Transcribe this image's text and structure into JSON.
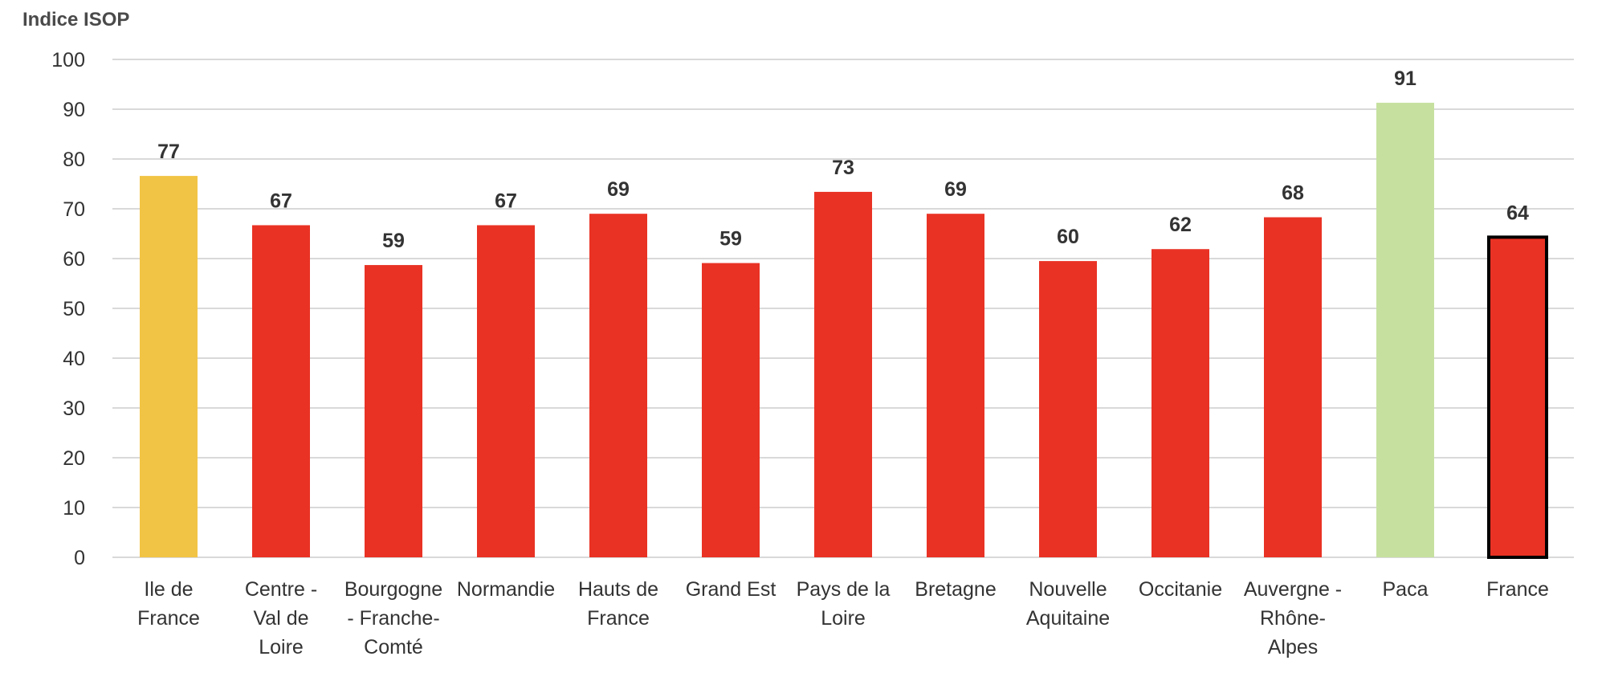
{
  "chart_data": {
    "type": "bar",
    "ylabel": "Indice ISOP",
    "ylim": [
      0,
      100
    ],
    "yticks": [
      0,
      10,
      20,
      30,
      40,
      50,
      60,
      70,
      80,
      90,
      100
    ],
    "grid": true,
    "categories": [
      [
        "Ile de",
        "France"
      ],
      [
        "Centre -",
        "Val de",
        "Loire"
      ],
      [
        "Bourgogne",
        "- Franche-",
        "Comté"
      ],
      [
        "Normandie"
      ],
      [
        "Hauts de",
        "France"
      ],
      [
        "Grand Est"
      ],
      [
        "Pays de la",
        "Loire"
      ],
      [
        "Bretagne"
      ],
      [
        "Nouvelle",
        "Aquitaine"
      ],
      [
        "Occitanie"
      ],
      [
        "Auvergne -",
        "Rhône-",
        "Alpes"
      ],
      [
        "Paca"
      ],
      [
        "France"
      ]
    ],
    "values": [
      76.6,
      66.7,
      58.7,
      66.7,
      69.0,
      59.1,
      73.4,
      69.0,
      59.5,
      61.9,
      68.3,
      91.3,
      64.3
    ],
    "data_labels": [
      "77",
      "67",
      "59",
      "67",
      "69",
      "59",
      "73",
      "69",
      "60",
      "62",
      "68",
      "91",
      "64"
    ],
    "colors": [
      "#f2c445",
      "#e93224",
      "#e93224",
      "#e93224",
      "#e93224",
      "#e93224",
      "#e93224",
      "#e93224",
      "#e93224",
      "#e93224",
      "#e93224",
      "#c6e19f",
      "#e93224"
    ],
    "highlight_outline": [
      false,
      false,
      false,
      false,
      false,
      false,
      false,
      false,
      false,
      false,
      false,
      false,
      true
    ],
    "outline_color": "#000000"
  }
}
